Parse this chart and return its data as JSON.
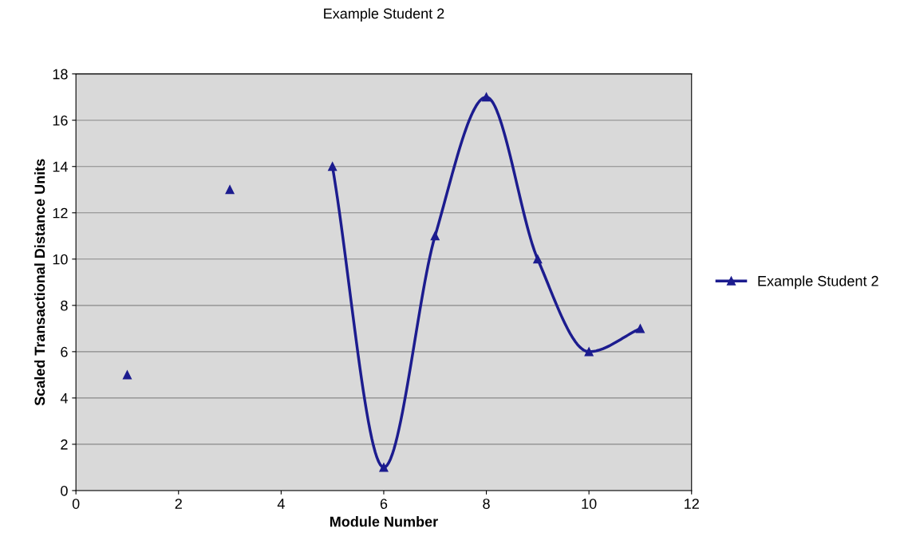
{
  "chart_data": {
    "type": "line",
    "title": "Example Student 2",
    "xlabel": "Module Number",
    "ylabel": "Scaled Transactional Distance Units",
    "x": [
      1,
      2,
      3,
      4,
      5,
      6,
      7,
      8,
      9,
      10,
      11
    ],
    "series": [
      {
        "name": "Example Student 2",
        "color": "#1c1c8f",
        "values": [
          5,
          null,
          13,
          null,
          14,
          1,
          11,
          17,
          10,
          6,
          7
        ]
      }
    ],
    "xlim": [
      0,
      12
    ],
    "xticks": [
      0,
      2,
      4,
      6,
      8,
      10,
      12
    ],
    "ylim": [
      0,
      18
    ],
    "yticks": [
      0,
      2,
      4,
      6,
      8,
      10,
      12,
      14,
      16,
      18
    ],
    "grid": "y",
    "legend": "right",
    "marker": "triangle",
    "line_style": "solid"
  }
}
